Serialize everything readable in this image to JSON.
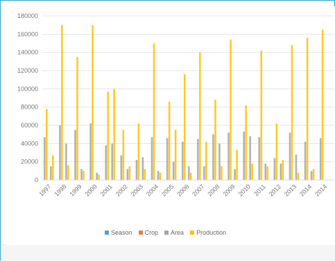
{
  "chart_data": {
    "type": "bar",
    "title": "",
    "xlabel": "",
    "ylabel": "",
    "ylim": [
      0,
      180000
    ],
    "yticks": [
      0,
      20000,
      40000,
      60000,
      80000,
      100000,
      120000,
      140000,
      160000,
      180000
    ],
    "grid": true,
    "legend_position": "bottom",
    "categories": [
      "1997",
      "1998",
      "1999",
      "2000",
      "2001",
      "2002",
      "2003",
      "2004",
      "2005",
      "2006",
      "2007",
      "2008",
      "2009",
      "2010",
      "2011",
      "2012",
      "2013",
      "2014",
      "2014"
    ],
    "series": [
      {
        "name": "Season",
        "color": "#5b9bd5",
        "values": [
          0,
          0,
          0,
          0,
          0,
          0,
          0,
          0,
          0,
          0,
          0,
          0,
          0,
          0,
          0,
          0,
          0,
          0,
          0
        ]
      },
      {
        "name": "Crop",
        "color": "#ed7d31",
        "values": [
          0,
          0,
          0,
          0,
          0,
          0,
          0,
          0,
          0,
          0,
          0,
          0,
          0,
          0,
          0,
          0,
          0,
          0,
          0
        ]
      },
      {
        "name": "Area",
        "color": "#a5a5a5",
        "values": [
          47000,
          60000,
          55000,
          62000,
          38000,
          27000,
          22000,
          47000,
          46000,
          42000,
          45000,
          50000,
          52000,
          53000,
          47000,
          24000,
          52000,
          42000,
          46000
        ]
      },
      {
        "name": "Production",
        "color": "#ffc000",
        "values": [
          78000,
          170000,
          135000,
          170000,
          97000,
          55000,
          62000,
          150000,
          86000,
          116000,
          140000,
          88000,
          154000,
          82000,
          142000,
          62000,
          148000,
          156000,
          165000
        ]
      }
    ],
    "small_bars": {
      "area_b": [
        15000,
        40000,
        12000,
        8000,
        40000,
        12000,
        25000,
        10000,
        20000,
        15000,
        15000,
        40000,
        12000,
        48000,
        18000,
        18000,
        28000,
        10000,
        0
      ],
      "production_b": [
        27000,
        16000,
        10000,
        6000,
        100000,
        15000,
        12000,
        8000,
        55000,
        8000,
        42000,
        15000,
        33000,
        18000,
        15000,
        22000,
        8000,
        12000,
        0
      ]
    }
  }
}
